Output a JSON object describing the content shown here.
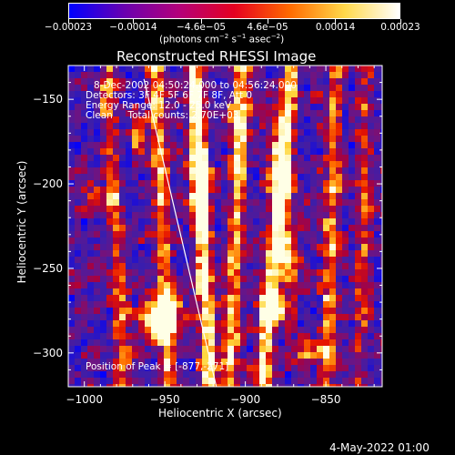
{
  "chart_data": {
    "type": "heatmap",
    "title": "Reconstructed RHESSI Image",
    "xlabel": "Heliocentric X (arcsec)",
    "ylabel": "Heliocentric Y (arcsec)",
    "xlim": [
      -1010,
      -815
    ],
    "ylim": [
      -320,
      -130
    ],
    "x_ticks": [
      -1000,
      -950,
      -900,
      -850
    ],
    "x_tick_labels": [
      "−1000",
      "−950",
      "−900",
      "−850"
    ],
    "y_ticks": [
      -150,
      -200,
      -250,
      -300
    ],
    "y_tick_labels": [
      "−150",
      "−200",
      "−250",
      "−300"
    ],
    "colorbar": {
      "range": [
        -0.00023,
        0.00023
      ],
      "ticks": [
        -0.00023,
        -0.00014,
        -4.6e-05,
        4.6e-05,
        0.00014,
        0.00023
      ],
      "tick_labels": [
        "−0.00023",
        "−0.00014",
        "−4.6e−05",
        "4.6e−05",
        "0.00014",
        "0.00023"
      ],
      "units_pre": "(photons cm",
      "units_exp1": "−2",
      "units_mid": " s",
      "units_exp2": "−1",
      "units_post": " asec",
      "units_exp3": "−2",
      "units_end": ")",
      "colors": [
        "#0000ff",
        "#6a00b0",
        "#b4007a",
        "#e50020",
        "#ff6a00",
        "#ffd84a",
        "#ffffff"
      ]
    },
    "annotations": [
      "8-Dec-2002 04:50:24.000 to 04:56:24.000",
      "Detectors: 3F 4F 5F 6F 7F 8F, Att 0",
      "Energy Range: 12.0 - 25.0 keV",
      "Clean     Total counts: 2.70E+03"
    ],
    "peak_label": "Position of Peak = [-877,-271]",
    "peak": [
      -877,
      -271
    ],
    "limb_line": [
      [
        -963,
        -138
      ],
      [
        -918,
        -320
      ]
    ],
    "ridges": [
      {
        "x0": -985,
        "y0": -150,
        "x1": -975,
        "y1": -320,
        "amp": 0.45
      },
      {
        "x0": -955,
        "y0": -140,
        "x1": -948,
        "y1": -320,
        "amp": 0.55
      },
      {
        "x0": -932,
        "y0": -130,
        "x1": -922,
        "y1": -310,
        "amp": 0.75
      },
      {
        "x0": -902,
        "y0": -140,
        "x1": -910,
        "y1": -320,
        "amp": 0.55
      },
      {
        "x0": -872,
        "y0": -140,
        "x1": -888,
        "y1": -300,
        "amp": 0.7
      },
      {
        "x0": -845,
        "y0": -180,
        "x1": -850,
        "y1": -320,
        "amp": 0.45
      },
      {
        "x0": -825,
        "y0": -180,
        "x1": -830,
        "y1": -320,
        "amp": 0.3
      }
    ],
    "blobs": [
      {
        "x": -952,
        "y": -278,
        "sx": 12,
        "sy": 13,
        "amp": 0.9
      },
      {
        "x": -993,
        "y": -208,
        "sx": 6,
        "sy": 7,
        "amp": 0.5
      },
      {
        "x": -967,
        "y": -170,
        "sx": 5,
        "sy": 10,
        "amp": 0.55
      },
      {
        "x": -928,
        "y": -205,
        "sx": 7,
        "sy": 25,
        "amp": 0.55
      },
      {
        "x": -930,
        "y": -150,
        "sx": 6,
        "sy": 8,
        "amp": 0.5
      },
      {
        "x": -878,
        "y": -192,
        "sx": 7,
        "sy": 25,
        "amp": 0.6
      },
      {
        "x": -874,
        "y": -242,
        "sx": 6,
        "sy": 20,
        "amp": 0.6
      },
      {
        "x": -882,
        "y": -273,
        "sx": 8,
        "sy": 10,
        "amp": 0.7
      },
      {
        "x": -860,
        "y": -300,
        "sx": 10,
        "sy": 6,
        "amp": 0.5
      },
      {
        "x": -895,
        "y": -310,
        "sx": 6,
        "sy": 6,
        "amp": 0.35
      },
      {
        "x": -840,
        "y": -200,
        "sx": 5,
        "sy": 5,
        "amp": 0.35
      },
      {
        "x": -905,
        "y": -160,
        "sx": 6,
        "sy": 10,
        "amp": 0.35
      }
    ]
  },
  "footer": {
    "date": "4-May-2022 01:00"
  }
}
